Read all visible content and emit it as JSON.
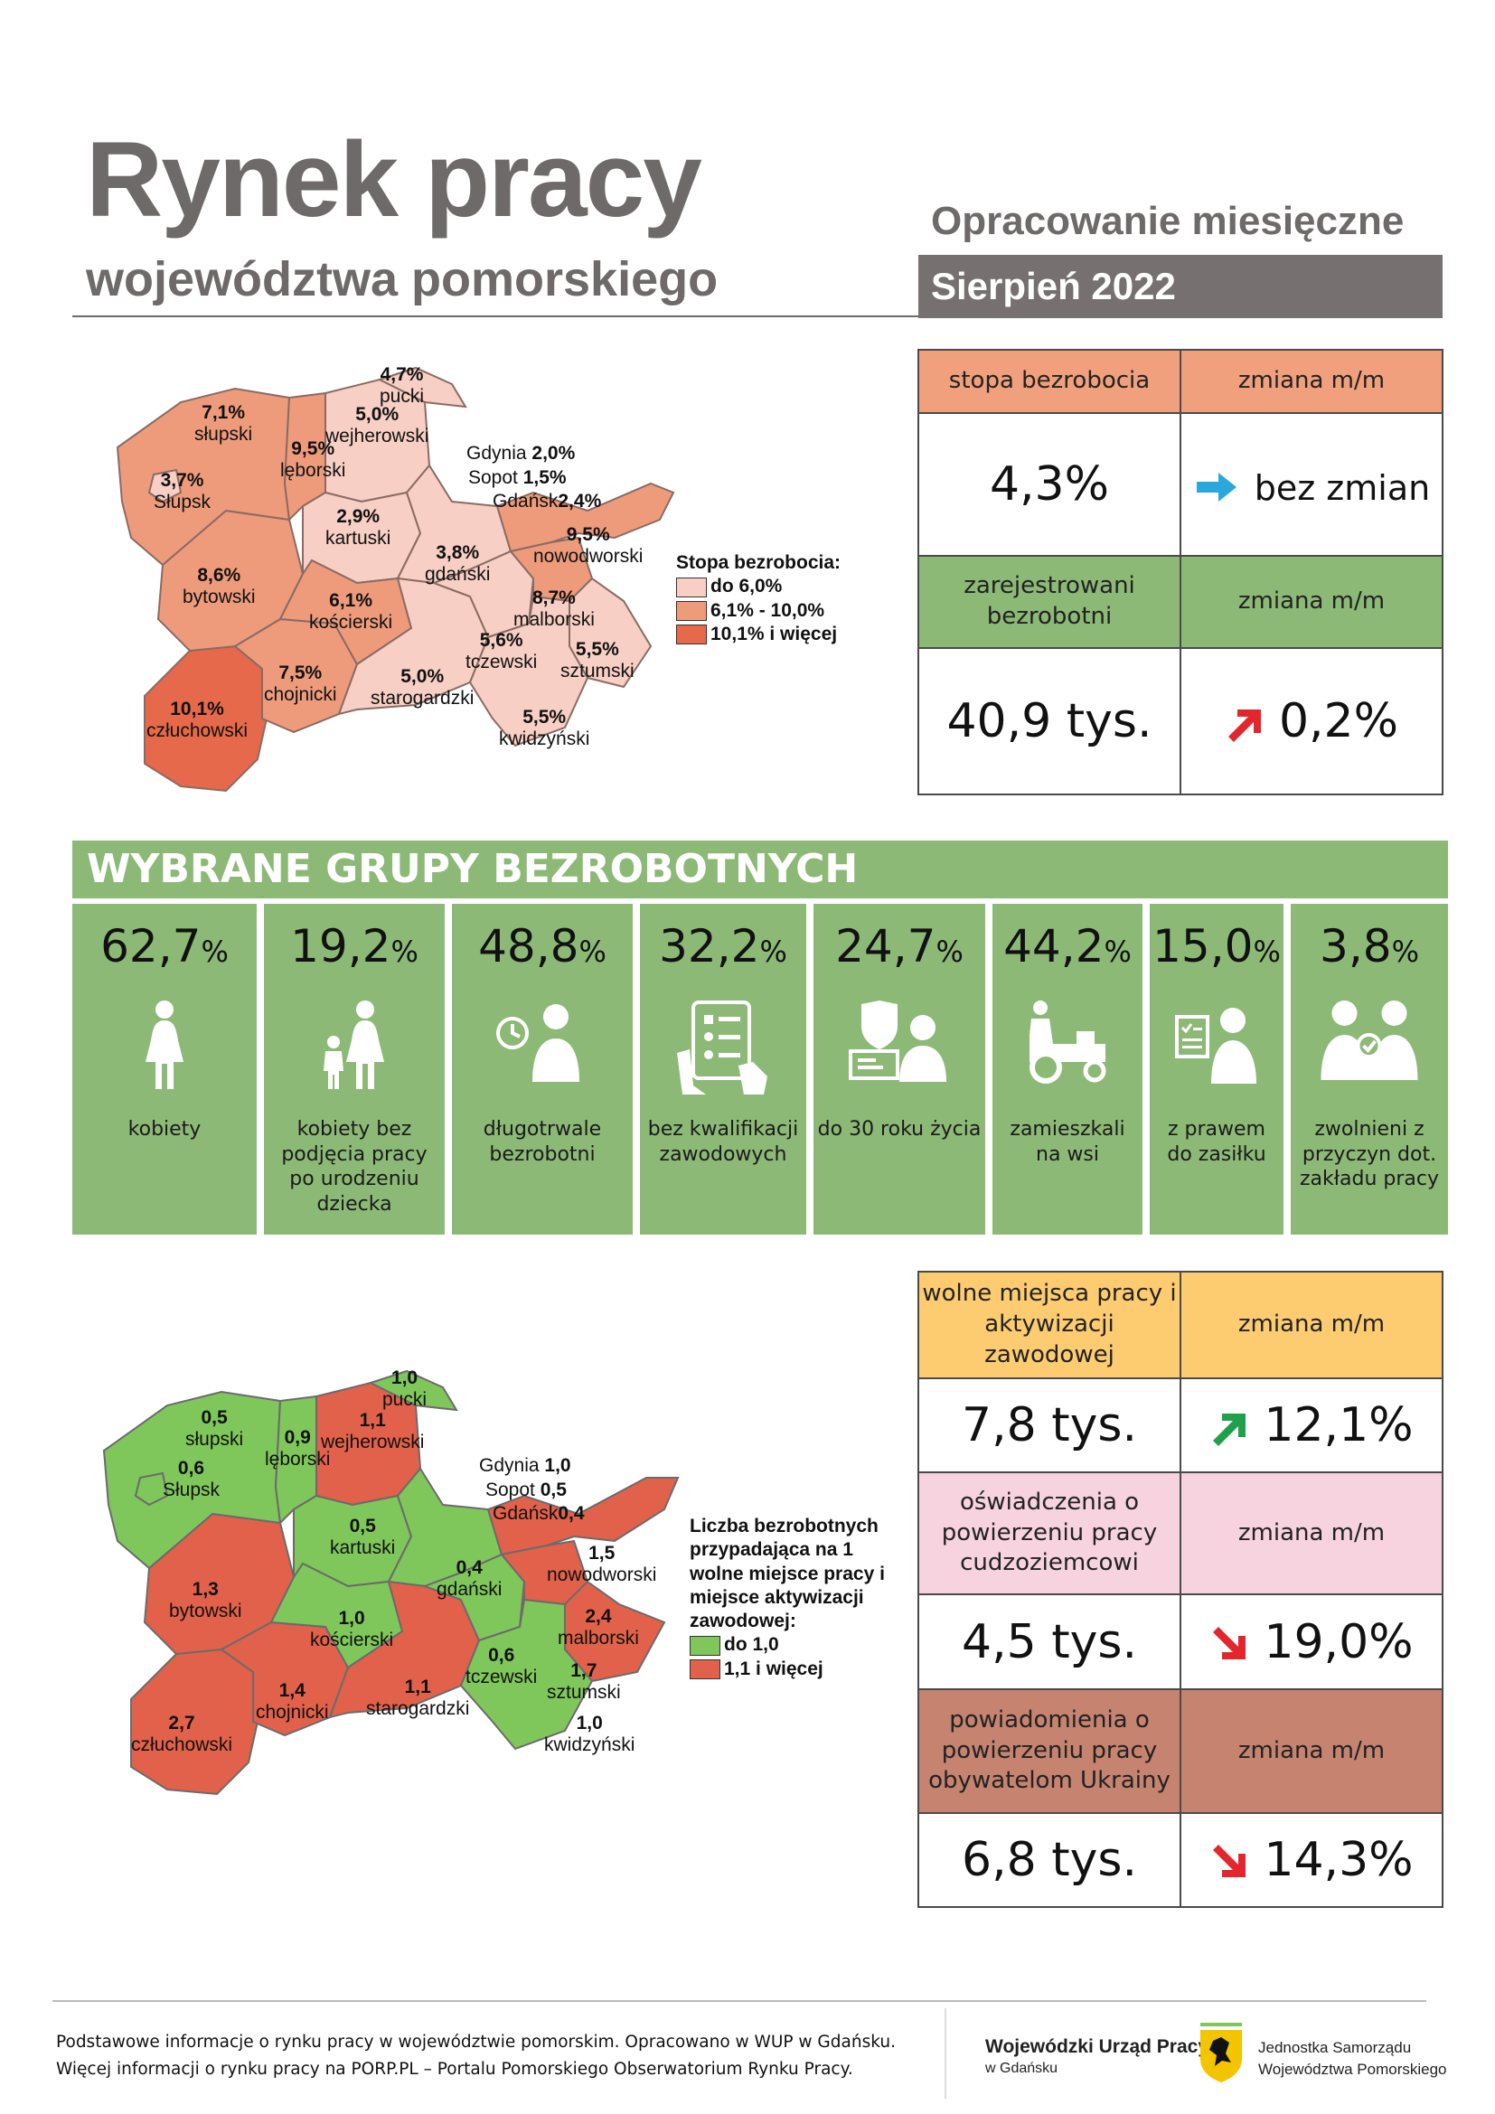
{
  "header": {
    "title": "Rynek pracy",
    "subtitle": "województwa pomorskiego",
    "monthly": "Opracowanie miesięczne",
    "period": "Sierpień 2022"
  },
  "unemployment": {
    "rate_label": "stopa bezrobocia",
    "change_label": "zmiana m/m",
    "rate_value": "4,3%",
    "rate_change": "bez zmian",
    "registered_label": "zarejestrowani bezrobotni",
    "registered_change_label": "zmiana m/m",
    "registered_value": "40,9 tys.",
    "registered_change": "0,2%"
  },
  "map1": {
    "legend_title": "Stopa bezrobocia:",
    "legend": [
      "do 6,0%",
      "6,1% - 10,0%",
      "10,1% i więcej"
    ],
    "legend_colors": [
      "#f7cfc4",
      "#ee9b7c",
      "#e5694a"
    ],
    "regions": [
      {
        "value": "4,7%",
        "name": "pucki"
      },
      {
        "value": "7,1%",
        "name": "słupski"
      },
      {
        "value": "5,0%",
        "name": "wejherowski"
      },
      {
        "value": "9,5%",
        "name": "lęborski"
      },
      {
        "value": "3,7%",
        "name": "Słupsk"
      },
      {
        "value": "2,0%",
        "name": "Gdynia"
      },
      {
        "value": "1,5%",
        "name": "Sopot"
      },
      {
        "value": "2,4%",
        "name": "Gdańsk"
      },
      {
        "value": "2,9%",
        "name": "kartuski"
      },
      {
        "value": "9,5%",
        "name": "nowodworski"
      },
      {
        "value": "3,8%",
        "name": "gdański"
      },
      {
        "value": "8,6%",
        "name": "bytowski"
      },
      {
        "value": "6,1%",
        "name": "kościerski"
      },
      {
        "value": "8,7%",
        "name": "malborski"
      },
      {
        "value": "5,6%",
        "name": "tczewski"
      },
      {
        "value": "5,5%",
        "name": "sztumski"
      },
      {
        "value": "7,5%",
        "name": "chojnicki"
      },
      {
        "value": "5,0%",
        "name": "starogardzki"
      },
      {
        "value": "10,1%",
        "name": "człuchowski"
      },
      {
        "value": "5,5%",
        "name": "kwidzyński"
      }
    ]
  },
  "groups": {
    "title": "WYBRANE GRUPY BEZROBOTNYCH",
    "items": [
      {
        "value": "62,7",
        "unit": "%",
        "label": "kobiety",
        "icon": "woman-icon"
      },
      {
        "value": "19,2",
        "unit": "%",
        "label": "kobiety bez podjęcia pracy po urodzeniu dziecka",
        "icon": "mother-child-icon"
      },
      {
        "value": "48,8",
        "unit": "%",
        "label": "długotrwale bezrobotni",
        "icon": "clock-person-icon"
      },
      {
        "value": "32,2",
        "unit": "%",
        "label": "bez kwalifikacji zawodowych",
        "icon": "checklist-tablet-icon"
      },
      {
        "value": "24,7",
        "unit": "%",
        "label": "do 30 roku życia",
        "icon": "young-person-computer-icon"
      },
      {
        "value": "44,2",
        "unit": "%",
        "label": "zamieszkali na wsi",
        "icon": "tractor-icon"
      },
      {
        "value": "15,0",
        "unit": "%",
        "label": "z prawem do zasiłku",
        "icon": "document-person-icon"
      },
      {
        "value": "3,8",
        "unit": "%",
        "label": "zwolnieni z przyczyn dot. zakładu pracy",
        "icon": "handshake-people-icon"
      }
    ]
  },
  "offers": {
    "vacancies_label": "wolne miejsca pracy i aktywizacji zawodowej",
    "change_label": "zmiana m/m",
    "vacancies_value": "7,8 tys.",
    "vacancies_change": "12,1%",
    "statements_label": "oświadczenia o powierzeniu pracy cudzoziemcowi",
    "statements_value": "4,5 tys.",
    "statements_change": "19,0%",
    "notifications_label": "powiadomienia o powierzeniu pracy obywatelom Ukrainy",
    "notifications_value": "6,8 tys.",
    "notifications_change": "14,3%"
  },
  "map2": {
    "legend_title": "Liczba bezrobotnych przypadająca na 1 wolne miejsce pracy i miejsce aktywizacji zawodowej:",
    "legend": [
      "do 1,0",
      "1,1 i więcej"
    ],
    "legend_colors": [
      "#7fc75a",
      "#e2614a"
    ],
    "regions": [
      {
        "value": "1,0",
        "name": "pucki"
      },
      {
        "value": "0,5",
        "name": "słupski"
      },
      {
        "value": "1,1",
        "name": "wejherowski"
      },
      {
        "value": "0,9",
        "name": "lęborski"
      },
      {
        "value": "0,6",
        "name": "Słupsk"
      },
      {
        "value": "1,0",
        "name": "Gdynia"
      },
      {
        "value": "0,5",
        "name": "Sopot"
      },
      {
        "value": "0,4",
        "name": "Gdańsk"
      },
      {
        "value": "0,5",
        "name": "kartuski"
      },
      {
        "value": "1,5",
        "name": "nowodworski"
      },
      {
        "value": "0,4",
        "name": "gdański"
      },
      {
        "value": "1,3",
        "name": "bytowski"
      },
      {
        "value": "1,0",
        "name": "kościerski"
      },
      {
        "value": "2,4",
        "name": "malborski"
      },
      {
        "value": "0,6",
        "name": "tczewski"
      },
      {
        "value": "1,7",
        "name": "sztumski"
      },
      {
        "value": "1,4",
        "name": "chojnicki"
      },
      {
        "value": "1,1",
        "name": "starogardzki"
      },
      {
        "value": "2,7",
        "name": "człuchowski"
      },
      {
        "value": "1,0",
        "name": "kwidzyński"
      }
    ]
  },
  "footer": {
    "line1": "Podstawowe informacje o rynku pracy w województwie pomorskim. Opracowano w WUP w Gdańsku.",
    "line2": "Więcej informacji o rynku pracy na PORP.PL – Portalu Pomorskiego Obserwatorium Rynku Pracy.",
    "wup_name": "Wojewódzki Urząd Pracy",
    "wup_city": "w Gdańsku",
    "js_line1": "Jednostka Samorządu",
    "js_line2": "Województwa Pomorskiego"
  }
}
